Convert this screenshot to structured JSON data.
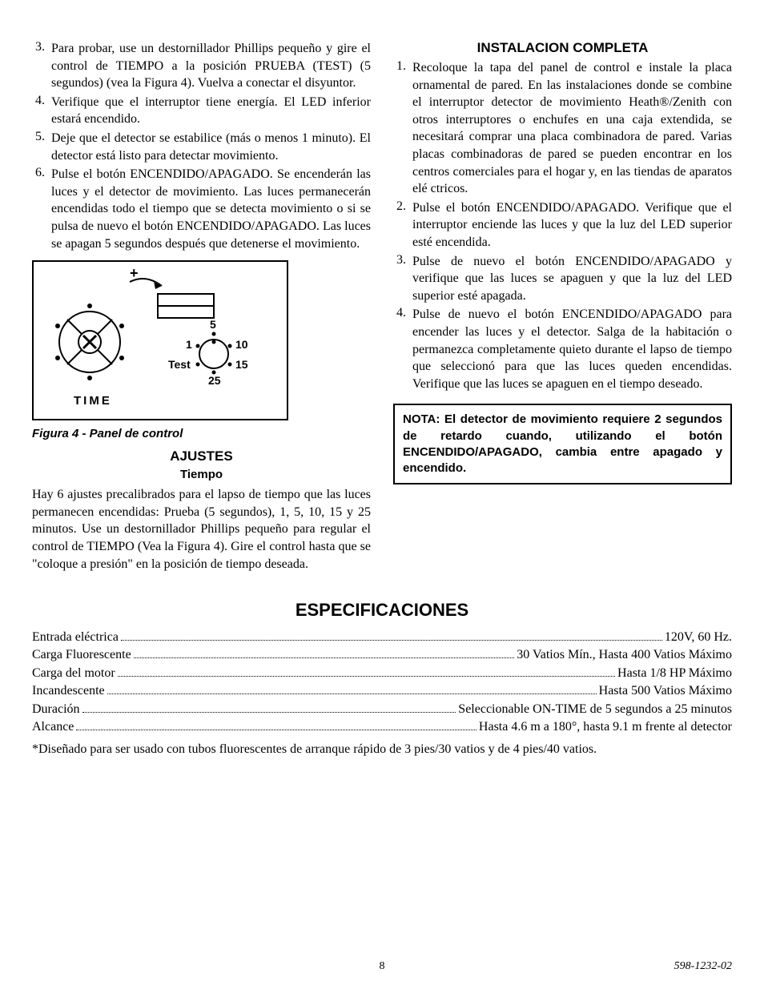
{
  "leftList": [
    {
      "n": "3.",
      "t": "Para probar, use un destornillador Phillips pequeño y gire el control de TIEMPO a la posición PRUEBA (TEST) (5 segundos) (vea la Figura 4). Vuelva a conectar el disyuntor."
    },
    {
      "n": "4.",
      "t": "Verifique que el interruptor tiene energía. El LED inferior estará encendido."
    },
    {
      "n": "5.",
      "t": "Deje que el detector se estabilice (más o menos 1 minuto). El detector está listo para detectar movimiento."
    },
    {
      "n": "6.",
      "t": "Pulse el botón ENCENDIDO/APAGADO. Se encenderán las luces y el detector de movimiento. Las luces permanecerán encendidas todo el tiempo que se detecta movimiento o si se pulsa de nuevo el botón ENCENDIDO/APAGADO. Las luces se apagan 5 segundos después que detenerse el movimiento."
    }
  ],
  "figure": {
    "caption": "Figura 4 - Panel de control",
    "timeLabel": "TIME",
    "dial": {
      "labels": [
        "5",
        "1",
        "10",
        "Test",
        "15",
        "25"
      ],
      "plus": "+"
    }
  },
  "ajustes": {
    "title": "AJUSTES",
    "sub": "Tiempo",
    "para": "Hay 6 ajustes precalibrados para el lapso de tiempo que las luces permanecen encendidas: Prueba (5 segundos), 1, 5, 10, 15 y 25 minutos. Use un destornillador Phillips pequeño para regular el control de TIEMPO (Vea la Figura 4). Gire el control hasta que se \"coloque a presión\" en la posición de tiempo deseada."
  },
  "rightTitle": "INSTALACION COMPLETA",
  "rightList": [
    {
      "n": "1.",
      "t": "Recoloque la tapa del panel de control e instale la placa ornamental de pared. En las instalaciones donde se combine el interruptor detector de movimiento Heath®/Zenith con otros interruptores o enchufes en una caja extendida, se necesitará comprar una placa combinadora de pared. Varias placas combinadoras de pared se pueden encontrar en los centros comerciales para el hogar y, en las tiendas de aparatos elé ctricos."
    },
    {
      "n": "2.",
      "t": "Pulse el botón ENCENDIDO/APAGADO. Verifique que el interruptor enciende las luces y que la luz del LED superior esté encendida."
    },
    {
      "n": "3.",
      "t": "Pulse de nuevo el botón ENCENDIDO/APAGADO y verifique que las luces se apaguen y que la luz del LED superior esté apagada."
    },
    {
      "n": "4.",
      "t": "Pulse de nuevo el botón ENCENDIDO/APAGADO para encender las luces y el detector. Salga de la habitación o permanezca completamente quieto durante el lapso de tiempo que seleccionó para que las luces queden encendidas. Verifique que las luces se apaguen en el tiempo deseado."
    }
  ],
  "note": "NOTA: El detector de movimiento requiere 2 segundos de retardo cuando, utilizando el botón ENCENDIDO/APAGADO, cambia entre apagado y encendido.",
  "specTitle": "ESPECIFICACIONES",
  "specs": [
    {
      "l": "Entrada eléctrica",
      "v": "120V, 60 Hz."
    },
    {
      "l": "Carga Fluorescente",
      "v": "30 Vatios Mín., Hasta 400 Vatios Máximo"
    },
    {
      "l": "Carga del motor",
      "v": "Hasta 1/8 HP Máximo"
    },
    {
      "l": "Incandescente",
      "v": "Hasta 500 Vatios Máximo"
    },
    {
      "l": "Duración",
      "v": "Seleccionable ON-TIME de 5 segundos a 25 minutos"
    },
    {
      "l": "Alcance",
      "v": "Hasta 4.6 m a 180°, hasta 9.1 m frente al detector"
    }
  ],
  "footnote": "*Diseñado para ser usado con tubos fluorescentes de arranque rápido de 3 pies/30 vatios y de 4 pies/40 vatios.",
  "pageNum": "8",
  "docCode": "598-1232-02"
}
